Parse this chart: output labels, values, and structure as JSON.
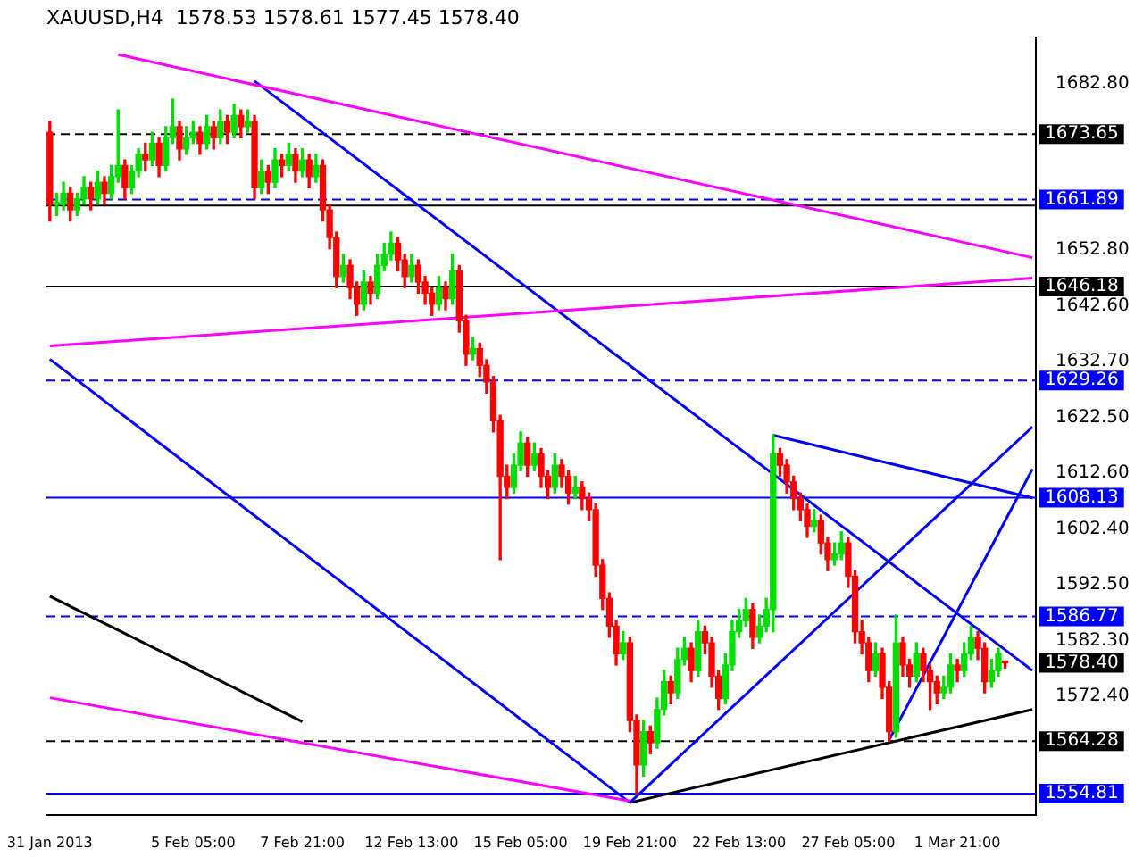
{
  "chart_data": {
    "type": "candlestick",
    "title": "XAUUSD,H4  1578.53 1578.61 1577.45 1578.40",
    "categories": [
      "31 Jan 2013",
      null,
      null,
      null,
      null,
      null,
      null,
      null,
      null,
      null,
      null,
      null,
      null,
      null,
      null,
      null,
      null,
      null,
      null,
      null,
      null,
      "5 Feb 05:00",
      null,
      null,
      null,
      null,
      null,
      null,
      null,
      null,
      null,
      null,
      null,
      null,
      null,
      null,
      null,
      "7 Feb 21:00",
      null,
      null,
      null,
      null,
      null,
      null,
      null,
      null,
      null,
      null,
      null,
      null,
      null,
      null,
      null,
      "12 Feb 13:00",
      null,
      null,
      null,
      null,
      null,
      null,
      null,
      null,
      null,
      null,
      null,
      null,
      null,
      null,
      null,
      "15 Feb 05:00",
      null,
      null,
      null,
      null,
      null,
      null,
      null,
      null,
      null,
      null,
      null,
      null,
      null,
      null,
      null,
      "19 Feb 21:00",
      null,
      null,
      null,
      null,
      null,
      null,
      null,
      null,
      null,
      null,
      null,
      null,
      null,
      null,
      null,
      "22 Feb 13:00",
      null,
      null,
      null,
      null,
      null,
      null,
      null,
      null,
      null,
      null,
      null,
      null,
      null,
      null,
      null,
      "27 Feb 05:00",
      null,
      null,
      null,
      null,
      null,
      null,
      null,
      null,
      null,
      null,
      null,
      null,
      null,
      null,
      null,
      "1 Mar 21:00",
      null,
      null,
      null,
      null,
      null,
      null,
      null,
      null,
      null,
      null,
      null
    ],
    "ohlc": [
      [
        1674,
        1676,
        1658,
        1661
      ],
      [
        1661,
        1663,
        1659,
        1661
      ],
      [
        1661,
        1665,
        1660,
        1663
      ],
      [
        1663,
        1664,
        1658,
        1660
      ],
      [
        1660,
        1663,
        1659,
        1662
      ],
      [
        1662,
        1666,
        1661,
        1664
      ],
      [
        1664,
        1665,
        1660,
        1662
      ],
      [
        1662,
        1667,
        1661,
        1665
      ],
      [
        1665,
        1666,
        1661,
        1663
      ],
      [
        1663,
        1668,
        1662,
        1666
      ],
      [
        1666,
        1678,
        1665,
        1668
      ],
      [
        1668,
        1669,
        1662,
        1664
      ],
      [
        1664,
        1668,
        1663,
        1667
      ],
      [
        1667,
        1671,
        1666,
        1670
      ],
      [
        1670,
        1672,
        1667,
        1669
      ],
      [
        1669,
        1674,
        1668,
        1672
      ],
      [
        1672,
        1673,
        1666,
        1668
      ],
      [
        1668,
        1675,
        1667,
        1673
      ],
      [
        1673,
        1680,
        1672,
        1675
      ],
      [
        1675,
        1676,
        1669,
        1671
      ],
      [
        1671,
        1675,
        1670,
        1673
      ],
      [
        1673,
        1676,
        1672,
        1674
      ],
      [
        1674,
        1675,
        1670,
        1672
      ],
      [
        1672,
        1677,
        1671,
        1675
      ],
      [
        1675,
        1676,
        1671,
        1673
      ],
      [
        1673,
        1678,
        1672,
        1676
      ],
      [
        1676,
        1677,
        1672,
        1674
      ],
      [
        1674,
        1679,
        1673,
        1677
      ],
      [
        1677,
        1678,
        1673,
        1675
      ],
      [
        1675,
        1678,
        1674,
        1676
      ],
      [
        1676,
        1677,
        1662,
        1664
      ],
      [
        1664,
        1669,
        1663,
        1667
      ],
      [
        1667,
        1668,
        1663,
        1665
      ],
      [
        1665,
        1671,
        1664,
        1669
      ],
      [
        1669,
        1670,
        1666,
        1668
      ],
      [
        1668,
        1672,
        1667,
        1670
      ],
      [
        1670,
        1671,
        1665,
        1667
      ],
      [
        1667,
        1671,
        1666,
        1669
      ],
      [
        1669,
        1670,
        1664,
        1666
      ],
      [
        1666,
        1670,
        1665,
        1668
      ],
      [
        1668,
        1669,
        1658,
        1660
      ],
      [
        1660,
        1661,
        1653,
        1655
      ],
      [
        1655,
        1656,
        1646,
        1648
      ],
      [
        1648,
        1652,
        1647,
        1650
      ],
      [
        1650,
        1651,
        1644,
        1646
      ],
      [
        1646,
        1647,
        1641,
        1643
      ],
      [
        1643,
        1649,
        1642,
        1647
      ],
      [
        1647,
        1648,
        1643,
        1645
      ],
      [
        1645,
        1652,
        1644,
        1650
      ],
      [
        1650,
        1654,
        1649,
        1652
      ],
      [
        1652,
        1656,
        1651,
        1654
      ],
      [
        1654,
        1655,
        1649,
        1651
      ],
      [
        1651,
        1652,
        1646,
        1648
      ],
      [
        1648,
        1652,
        1647,
        1650
      ],
      [
        1650,
        1651,
        1645,
        1647
      ],
      [
        1647,
        1648,
        1643,
        1645
      ],
      [
        1645,
        1646,
        1641,
        1643
      ],
      [
        1643,
        1648,
        1642,
        1646
      ],
      [
        1646,
        1647,
        1642,
        1644
      ],
      [
        1644,
        1652,
        1643,
        1649
      ],
      [
        1649,
        1650,
        1638,
        1640
      ],
      [
        1640,
        1641,
        1632,
        1634
      ],
      [
        1634,
        1637,
        1633,
        1635
      ],
      [
        1635,
        1636,
        1630,
        1632
      ],
      [
        1632,
        1633,
        1627,
        1629
      ],
      [
        1629,
        1630,
        1620,
        1622
      ],
      [
        1622,
        1623,
        1597,
        1612
      ],
      [
        1612,
        1614,
        1608,
        1610
      ],
      [
        1610,
        1616,
        1609,
        1614
      ],
      [
        1614,
        1620,
        1613,
        1618
      ],
      [
        1618,
        1619,
        1612,
        1614
      ],
      [
        1614,
        1618,
        1613,
        1616
      ],
      [
        1616,
        1617,
        1610,
        1612
      ],
      [
        1612,
        1613,
        1608,
        1610
      ],
      [
        1610,
        1616,
        1609,
        1614
      ],
      [
        1614,
        1615,
        1610,
        1612
      ],
      [
        1612,
        1613,
        1607,
        1609
      ],
      [
        1609,
        1612,
        1608,
        1610
      ],
      [
        1610,
        1611,
        1606,
        1608
      ],
      [
        1608,
        1609,
        1604,
        1606
      ],
      [
        1606,
        1607,
        1594,
        1596
      ],
      [
        1596,
        1597,
        1588,
        1590
      ],
      [
        1590,
        1591,
        1583,
        1585
      ],
      [
        1585,
        1586,
        1578,
        1580
      ],
      [
        1580,
        1584,
        1579,
        1582
      ],
      [
        1582,
        1583,
        1566,
        1568
      ],
      [
        1568,
        1569,
        1554.81,
        1560
      ],
      [
        1560,
        1568,
        1558,
        1566
      ],
      [
        1566,
        1567,
        1562,
        1564
      ],
      [
        1564,
        1572,
        1563,
        1570
      ],
      [
        1570,
        1577,
        1569,
        1575
      ],
      [
        1575,
        1576,
        1571,
        1573
      ],
      [
        1573,
        1581,
        1572,
        1579
      ],
      [
        1579,
        1583,
        1578,
        1581
      ],
      [
        1581,
        1582,
        1575,
        1577
      ],
      [
        1577,
        1586,
        1576,
        1584
      ],
      [
        1584,
        1585,
        1580,
        1582
      ],
      [
        1582,
        1583,
        1574,
        1576
      ],
      [
        1576,
        1577,
        1570,
        1572
      ],
      [
        1572,
        1580,
        1571,
        1578
      ],
      [
        1578,
        1586,
        1577,
        1584
      ],
      [
        1584,
        1588,
        1583,
        1586
      ],
      [
        1586,
        1590,
        1585,
        1588
      ],
      [
        1588,
        1589,
        1581,
        1583
      ],
      [
        1583,
        1587,
        1582,
        1585
      ],
      [
        1585,
        1590,
        1584,
        1588
      ],
      [
        1588,
        1619.5,
        1584,
        1616
      ],
      [
        1616,
        1617,
        1612,
        1614
      ],
      [
        1614,
        1615,
        1609,
        1611
      ],
      [
        1611,
        1612,
        1606,
        1608
      ],
      [
        1608,
        1609,
        1604,
        1606
      ],
      [
        1606,
        1607,
        1601,
        1603
      ],
      [
        1603,
        1606,
        1602,
        1604
      ],
      [
        1604,
        1605,
        1598,
        1600
      ],
      [
        1600,
        1601,
        1595,
        1597
      ],
      [
        1597,
        1600,
        1596,
        1598
      ],
      [
        1598,
        1602,
        1597,
        1600
      ],
      [
        1600,
        1601,
        1592,
        1594
      ],
      [
        1594,
        1595,
        1582,
        1584
      ],
      [
        1584,
        1586,
        1580,
        1582
      ],
      [
        1582,
        1583,
        1575,
        1577
      ],
      [
        1577,
        1582,
        1576,
        1580
      ],
      [
        1580,
        1581,
        1572,
        1574
      ],
      [
        1574,
        1575,
        1564.28,
        1566
      ],
      [
        1566,
        1587,
        1565,
        1582
      ],
      [
        1582,
        1583,
        1576,
        1578
      ],
      [
        1578,
        1579,
        1574,
        1576
      ],
      [
        1576,
        1582,
        1575,
        1580
      ],
      [
        1580,
        1581,
        1575,
        1577
      ],
      [
        1577,
        1578,
        1570,
        1575
      ],
      [
        1575,
        1576,
        1571,
        1573
      ],
      [
        1573,
        1576,
        1572,
        1574
      ],
      [
        1574,
        1580,
        1573,
        1578
      ],
      [
        1578,
        1579,
        1575,
        1577
      ],
      [
        1577,
        1582,
        1576,
        1580
      ],
      [
        1580,
        1585,
        1579,
        1583
      ],
      [
        1583,
        1584,
        1579,
        1581
      ],
      [
        1581,
        1582,
        1573,
        1575
      ],
      [
        1575,
        1579,
        1574,
        1577
      ],
      [
        1577,
        1581,
        1576,
        1580
      ],
      [
        1578.53,
        1578.61,
        1577.45,
        1578.4
      ],
      null,
      null,
      null,
      null
    ],
    "series": [
      {
        "type": "line",
        "color": "#ff00ff",
        "values": [
          null,
          null,
          null,
          null,
          null,
          null,
          null,
          null,
          null,
          null,
          1688.0,
          null,
          null,
          null,
          null,
          null,
          null,
          null,
          null,
          null,
          null,
          null,
          null,
          null,
          null,
          null,
          null,
          null,
          null,
          null,
          null,
          null,
          null,
          null,
          null,
          null,
          null,
          null,
          null,
          null,
          null,
          null,
          null,
          null,
          null,
          null,
          null,
          null,
          null,
          null,
          null,
          null,
          null,
          null,
          null,
          null,
          null,
          null,
          null,
          null,
          null,
          null,
          null,
          null,
          null,
          null,
          null,
          null,
          null,
          null,
          null,
          null,
          null,
          null,
          null,
          null,
          null,
          null,
          null,
          null,
          null,
          null,
          null,
          null,
          null,
          null,
          null,
          null,
          null,
          null,
          null,
          null,
          null,
          null,
          null,
          null,
          null,
          null,
          null,
          null,
          null,
          null,
          null,
          null,
          null,
          null,
          null,
          null,
          null,
          null,
          null,
          null,
          null,
          null,
          null,
          null,
          null,
          null,
          null,
          null,
          null,
          null,
          null,
          null,
          null,
          null,
          null,
          null,
          null,
          null,
          null,
          null,
          null,
          null,
          null,
          null,
          null,
          null,
          null,
          null,
          null,
          null,
          null,
          null,
          1651.4
        ]
      },
      {
        "type": "line",
        "color": "#ff00ff",
        "values": [
          1572.1,
          null,
          null,
          null,
          null,
          null,
          null,
          null,
          null,
          null,
          null,
          null,
          null,
          null,
          null,
          null,
          null,
          null,
          null,
          null,
          null,
          null,
          null,
          null,
          null,
          null,
          null,
          null,
          null,
          null,
          null,
          null,
          null,
          null,
          null,
          null,
          null,
          null,
          null,
          null,
          null,
          null,
          null,
          null,
          null,
          null,
          null,
          null,
          null,
          null,
          null,
          null,
          null,
          null,
          null,
          null,
          null,
          null,
          null,
          null,
          null,
          null,
          null,
          null,
          null,
          null,
          null,
          null,
          null,
          null,
          null,
          null,
          null,
          null,
          null,
          null,
          null,
          null,
          null,
          null,
          null,
          null,
          null,
          null,
          null,
          1553.5,
          null,
          null,
          null,
          null,
          null,
          null,
          null,
          null,
          null,
          null,
          null,
          null,
          null,
          null,
          null,
          null,
          null,
          null,
          null,
          null,
          null,
          null,
          null,
          null,
          null,
          null,
          null,
          null,
          null,
          null,
          null,
          null,
          null,
          null,
          null,
          null,
          null,
          null,
          null,
          null,
          null,
          null,
          null,
          null,
          null,
          null,
          null,
          null,
          null,
          null,
          null,
          null,
          null,
          null,
          null,
          null,
          null,
          null,
          null
        ]
      },
      {
        "type": "line",
        "color": "#ff00ff",
        "values": [
          1635.5,
          null,
          null,
          null,
          null,
          null,
          null,
          null,
          null,
          null,
          null,
          null,
          null,
          null,
          null,
          null,
          null,
          null,
          null,
          null,
          null,
          null,
          null,
          null,
          null,
          null,
          null,
          null,
          null,
          null,
          null,
          null,
          null,
          null,
          null,
          null,
          null,
          null,
          null,
          null,
          null,
          null,
          null,
          null,
          null,
          null,
          null,
          null,
          null,
          null,
          null,
          null,
          null,
          null,
          null,
          null,
          null,
          null,
          null,
          null,
          null,
          null,
          null,
          null,
          null,
          null,
          null,
          null,
          null,
          null,
          null,
          null,
          null,
          null,
          null,
          null,
          null,
          null,
          null,
          null,
          null,
          null,
          null,
          null,
          null,
          null,
          null,
          null,
          null,
          null,
          null,
          null,
          null,
          null,
          null,
          null,
          null,
          null,
          null,
          null,
          null,
          null,
          null,
          null,
          null,
          null,
          null,
          null,
          null,
          null,
          null,
          null,
          null,
          null,
          null,
          null,
          null,
          null,
          null,
          null,
          null,
          null,
          null,
          null,
          null,
          null,
          null,
          null,
          null,
          null,
          null,
          null,
          null,
          null,
          null,
          null,
          null,
          null,
          null,
          null,
          null,
          null,
          null,
          null,
          1647.7
        ]
      },
      {
        "type": "line",
        "color": "#0000ff",
        "values": [
          null,
          null,
          null,
          null,
          null,
          null,
          null,
          null,
          null,
          null,
          null,
          null,
          null,
          null,
          null,
          null,
          null,
          null,
          null,
          null,
          null,
          null,
          null,
          null,
          null,
          null,
          null,
          null,
          null,
          null,
          1683.2,
          null,
          null,
          null,
          null,
          null,
          null,
          null,
          null,
          null,
          null,
          null,
          null,
          null,
          null,
          null,
          null,
          null,
          null,
          null,
          null,
          null,
          null,
          null,
          null,
          null,
          null,
          null,
          null,
          null,
          null,
          null,
          null,
          null,
          null,
          null,
          null,
          null,
          null,
          null,
          null,
          null,
          null,
          null,
          null,
          null,
          null,
          null,
          null,
          null,
          null,
          null,
          null,
          null,
          null,
          null,
          null,
          null,
          null,
          null,
          null,
          null,
          null,
          null,
          null,
          null,
          null,
          null,
          null,
          null,
          null,
          null,
          null,
          null,
          null,
          null,
          null,
          null,
          null,
          null,
          null,
          null,
          null,
          null,
          null,
          null,
          null,
          null,
          null,
          null,
          null,
          null,
          null,
          null,
          null,
          null,
          null,
          null,
          null,
          null,
          null,
          null,
          null,
          null,
          null,
          null,
          null,
          null,
          null,
          null,
          null,
          null,
          null,
          null,
          1577.0
        ]
      },
      {
        "type": "line",
        "color": "#0000ff",
        "values": [
          1633.1,
          null,
          null,
          null,
          null,
          null,
          null,
          null,
          null,
          null,
          null,
          null,
          null,
          null,
          null,
          null,
          null,
          null,
          null,
          null,
          null,
          null,
          null,
          null,
          null,
          null,
          null,
          null,
          null,
          null,
          null,
          null,
          null,
          null,
          null,
          null,
          null,
          null,
          null,
          null,
          null,
          null,
          null,
          null,
          null,
          null,
          null,
          null,
          null,
          null,
          null,
          null,
          null,
          null,
          null,
          null,
          null,
          null,
          null,
          null,
          null,
          null,
          null,
          null,
          null,
          null,
          null,
          null,
          null,
          null,
          null,
          null,
          null,
          null,
          null,
          null,
          null,
          null,
          null,
          null,
          null,
          null,
          null,
          null,
          null,
          1553.2,
          null,
          null,
          null,
          null,
          null,
          null,
          null,
          null,
          null,
          null,
          null,
          null,
          null,
          null,
          null,
          null,
          null,
          null,
          null,
          null,
          null,
          null,
          null,
          null,
          null,
          null,
          null,
          null,
          null,
          null,
          null,
          null,
          null,
          null,
          null,
          null,
          null,
          null,
          null,
          null,
          null,
          null,
          null,
          null,
          null,
          null,
          null,
          null,
          null,
          null,
          null,
          null,
          null,
          null,
          null,
          null,
          null,
          null,
          null
        ]
      },
      {
        "type": "line",
        "color": "#0000ff",
        "values": [
          null,
          null,
          null,
          null,
          null,
          null,
          null,
          null,
          null,
          null,
          null,
          null,
          null,
          null,
          null,
          null,
          null,
          null,
          null,
          null,
          null,
          null,
          null,
          null,
          null,
          null,
          null,
          null,
          null,
          null,
          null,
          null,
          null,
          null,
          null,
          null,
          null,
          null,
          null,
          null,
          null,
          null,
          null,
          null,
          null,
          null,
          null,
          null,
          null,
          null,
          null,
          null,
          null,
          null,
          null,
          null,
          null,
          null,
          null,
          null,
          null,
          null,
          null,
          null,
          null,
          null,
          null,
          null,
          null,
          null,
          null,
          null,
          null,
          null,
          null,
          null,
          null,
          null,
          null,
          null,
          null,
          null,
          null,
          null,
          null,
          1553.2,
          null,
          null,
          null,
          null,
          null,
          null,
          null,
          null,
          null,
          null,
          null,
          null,
          null,
          null,
          null,
          null,
          null,
          null,
          null,
          null,
          null,
          null,
          null,
          null,
          null,
          null,
          null,
          null,
          null,
          null,
          null,
          null,
          null,
          null,
          null,
          null,
          null,
          null,
          null,
          null,
          null,
          null,
          null,
          null,
          null,
          null,
          null,
          null,
          null,
          null,
          null,
          null,
          null,
          null,
          null,
          null,
          null,
          null,
          1620.9
        ]
      },
      {
        "type": "line",
        "color": "#0000ff",
        "values": [
          null,
          null,
          null,
          null,
          null,
          null,
          null,
          null,
          null,
          null,
          null,
          null,
          null,
          null,
          null,
          null,
          null,
          null,
          null,
          null,
          null,
          null,
          null,
          null,
          null,
          null,
          null,
          null,
          null,
          null,
          null,
          null,
          null,
          null,
          null,
          null,
          null,
          null,
          null,
          null,
          null,
          null,
          null,
          null,
          null,
          null,
          null,
          null,
          null,
          null,
          null,
          null,
          null,
          null,
          null,
          null,
          null,
          null,
          null,
          null,
          null,
          null,
          null,
          null,
          null,
          null,
          null,
          null,
          null,
          null,
          null,
          null,
          null,
          null,
          null,
          null,
          null,
          null,
          null,
          null,
          null,
          null,
          null,
          null,
          null,
          null,
          null,
          null,
          null,
          null,
          null,
          null,
          null,
          null,
          null,
          null,
          null,
          null,
          null,
          null,
          null,
          null,
          null,
          null,
          null,
          null,
          null,
          null,
          null,
          null,
          null,
          null,
          null,
          null,
          null,
          null,
          null,
          null,
          null,
          null,
          null,
          null,
          null,
          1564.5,
          null,
          null,
          null,
          null,
          null,
          null,
          null,
          null,
          null,
          null,
          null,
          null,
          null,
          null,
          null,
          null,
          null,
          null,
          null,
          null,
          1613.3
        ]
      },
      {
        "type": "line",
        "color": "#0000ff",
        "values": [
          null,
          null,
          null,
          null,
          null,
          null,
          null,
          null,
          null,
          null,
          null,
          null,
          null,
          null,
          null,
          null,
          null,
          null,
          null,
          null,
          null,
          null,
          null,
          null,
          null,
          null,
          null,
          null,
          null,
          null,
          null,
          null,
          null,
          null,
          null,
          null,
          null,
          null,
          null,
          null,
          null,
          null,
          null,
          null,
          null,
          null,
          null,
          null,
          null,
          null,
          null,
          null,
          null,
          null,
          null,
          null,
          null,
          null,
          null,
          null,
          null,
          null,
          null,
          null,
          null,
          null,
          null,
          null,
          null,
          null,
          null,
          null,
          null,
          null,
          null,
          null,
          null,
          null,
          null,
          null,
          null,
          null,
          null,
          null,
          null,
          null,
          null,
          null,
          null,
          null,
          null,
          null,
          null,
          null,
          null,
          null,
          null,
          null,
          null,
          null,
          null,
          null,
          null,
          null,
          null,
          null,
          1619.4,
          null,
          null,
          null,
          null,
          null,
          null,
          null,
          null,
          null,
          null,
          null,
          null,
          null,
          null,
          null,
          null,
          null,
          null,
          null,
          null,
          null,
          null,
          null,
          null,
          null,
          null,
          null,
          null,
          null,
          null,
          null,
          null,
          null,
          null,
          null,
          null,
          null,
          1608.1
        ]
      },
      {
        "type": "line",
        "color": "#000000",
        "values": [
          null,
          null,
          null,
          null,
          null,
          null,
          null,
          null,
          null,
          null,
          null,
          null,
          null,
          null,
          null,
          null,
          null,
          null,
          null,
          null,
          null,
          null,
          null,
          null,
          null,
          null,
          null,
          null,
          null,
          null,
          null,
          null,
          null,
          null,
          null,
          null,
          null,
          null,
          null,
          null,
          null,
          null,
          null,
          null,
          null,
          null,
          null,
          null,
          null,
          null,
          null,
          null,
          null,
          null,
          null,
          null,
          null,
          null,
          null,
          null,
          null,
          null,
          null,
          null,
          null,
          null,
          null,
          null,
          null,
          null,
          null,
          null,
          null,
          null,
          null,
          null,
          null,
          null,
          null,
          null,
          null,
          null,
          null,
          null,
          null,
          1553.2,
          null,
          null,
          null,
          null,
          null,
          null,
          null,
          null,
          null,
          null,
          null,
          null,
          null,
          null,
          null,
          null,
          null,
          null,
          null,
          null,
          null,
          null,
          null,
          null,
          null,
          null,
          null,
          null,
          null,
          null,
          null,
          null,
          null,
          null,
          null,
          null,
          null,
          null,
          null,
          null,
          null,
          null,
          null,
          null,
          null,
          null,
          null,
          null,
          null,
          null,
          null,
          null,
          null,
          null,
          null,
          null,
          null,
          null,
          1570.0
        ]
      },
      {
        "type": "line",
        "color": "#000000",
        "values": [
          1590.4,
          null,
          null,
          null,
          null,
          null,
          null,
          null,
          null,
          null,
          null,
          null,
          null,
          null,
          null,
          null,
          null,
          null,
          null,
          null,
          null,
          null,
          null,
          null,
          null,
          null,
          null,
          null,
          null,
          null,
          null,
          null,
          null,
          null,
          null,
          null,
          null,
          1567.8,
          null,
          null,
          null,
          null,
          null,
          null,
          null,
          null,
          null,
          null,
          null,
          null,
          null,
          null,
          null,
          null,
          null,
          null,
          null,
          null,
          null,
          null,
          null,
          null,
          null,
          null,
          null,
          null,
          null,
          null,
          null,
          null,
          null,
          null,
          null,
          null,
          null,
          null,
          null,
          null,
          null,
          null,
          null,
          null,
          null,
          null,
          null,
          null,
          null,
          null,
          null,
          null,
          null,
          null,
          null,
          null,
          null,
          null,
          null,
          null,
          null,
          null,
          null,
          null,
          null,
          null,
          null,
          null,
          null,
          null,
          null,
          null,
          null,
          null,
          null,
          null,
          null,
          null,
          null,
          null,
          null,
          null,
          null,
          null,
          null,
          null,
          null,
          null,
          null,
          null,
          null,
          null,
          null,
          null,
          null,
          null,
          null,
          null,
          null,
          null,
          null,
          null,
          null,
          null,
          null,
          null,
          null
        ]
      }
    ],
    "ylim": [
      1551.0,
      1691.0
    ],
    "yticks": [
      {
        "value": 1682.8,
        "label": "1682.80"
      },
      {
        "value": 1652.8,
        "label": "1652.80"
      },
      {
        "value": 1642.6,
        "label": "1642.60"
      },
      {
        "value": 1632.7,
        "label": "1632.70"
      },
      {
        "value": 1622.5,
        "label": "1622.50"
      },
      {
        "value": 1612.6,
        "label": "1612.60"
      },
      {
        "value": 1602.4,
        "label": "1602.40"
      },
      {
        "value": 1592.5,
        "label": "1592.50"
      },
      {
        "value": 1582.3,
        "label": "1582.30"
      },
      {
        "value": 1572.4,
        "label": "1572.40"
      }
    ],
    "ref_lines": [
      {
        "axis": "y",
        "value": 1673.65,
        "label": "1673.65",
        "color": "#000000",
        "line_style": "dashed"
      },
      {
        "axis": "y",
        "value": 1661.89,
        "label": "1661.89",
        "color": "#0000ff",
        "line_style": "dashed"
      },
      {
        "axis": "y",
        "value": 1660.8,
        "color": "#000000",
        "line_style": "solid"
      },
      {
        "axis": "y",
        "value": 1646.18,
        "label": "1646.18",
        "color": "#000000",
        "line_style": "solid"
      },
      {
        "axis": "y",
        "value": 1629.26,
        "label": "1629.26",
        "color": "#0000ff",
        "line_style": "dashed"
      },
      {
        "axis": "y",
        "value": 1608.13,
        "label": "1608.13",
        "color": "#0000ff",
        "line_style": "solid"
      },
      {
        "axis": "y",
        "value": 1586.77,
        "label": "1586.77",
        "color": "#0000ff",
        "line_style": "dashed"
      },
      {
        "axis": "y",
        "value": 1564.28,
        "label": "1564.28",
        "color": "#000000",
        "line_style": "dashed"
      },
      {
        "axis": "y",
        "value": 1554.81,
        "label": "1554.81",
        "color": "#0000ff",
        "line_style": "solid"
      }
    ],
    "annotations": [
      "1578.40"
    ]
  }
}
